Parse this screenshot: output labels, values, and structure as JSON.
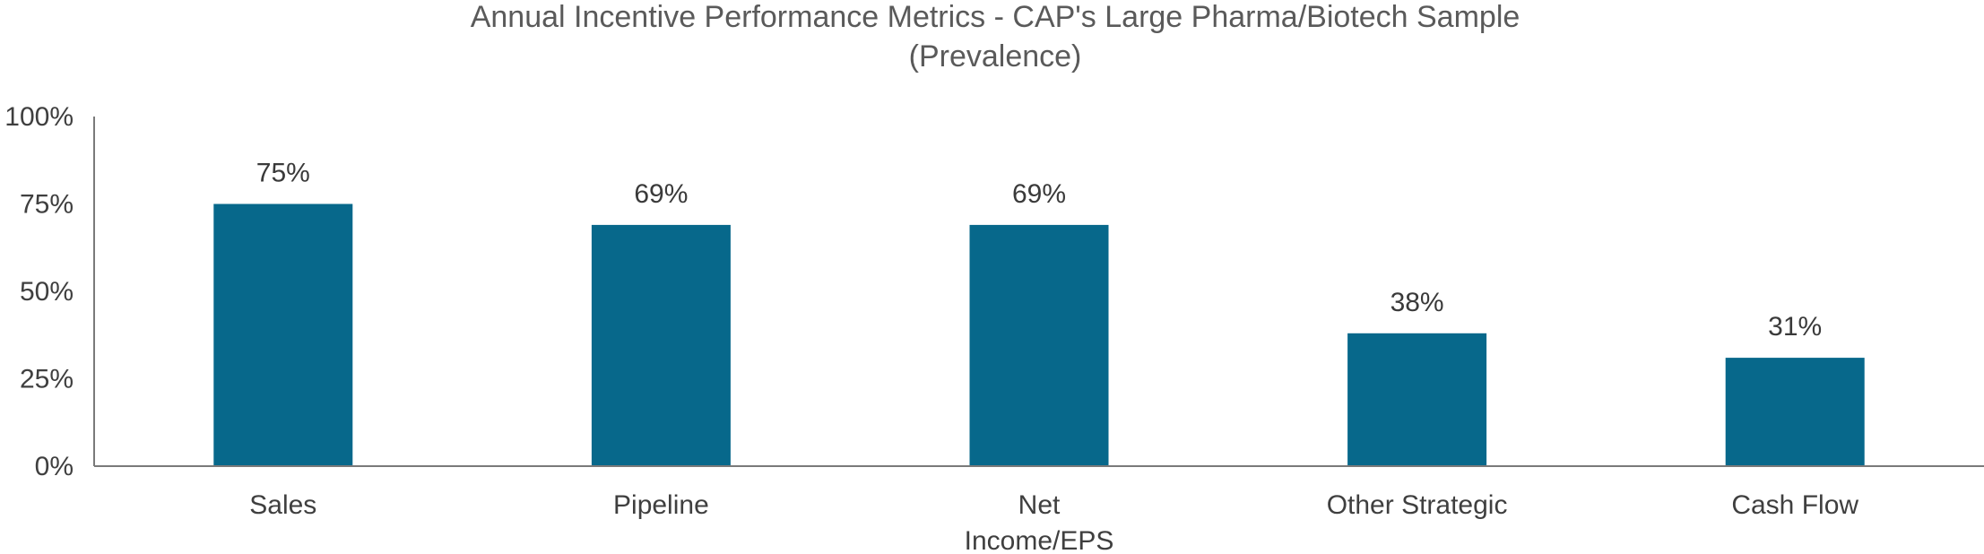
{
  "chart_data": {
    "type": "bar",
    "title": "Annual Incentive Performance Metrics - CAP's Large Pharma/Biotech Sample",
    "subtitle": "(Prevalence)",
    "categories": [
      [
        "Sales"
      ],
      [
        "Pipeline"
      ],
      [
        "Net",
        "Income/EPS"
      ],
      [
        "Other Strategic"
      ],
      [
        "Cash Flow"
      ]
    ],
    "values": [
      75,
      69,
      69,
      38,
      31
    ],
    "data_labels": [
      "75%",
      "69%",
      "69%",
      "38%",
      "31%"
    ],
    "yticks": [
      "0%",
      "25%",
      "50%",
      "75%",
      "100%"
    ],
    "ylim": [
      0,
      100
    ],
    "xlabel": "",
    "ylabel": "",
    "grid": false,
    "bar_color": "#07688b",
    "axis_color": "#7a7a7a"
  }
}
